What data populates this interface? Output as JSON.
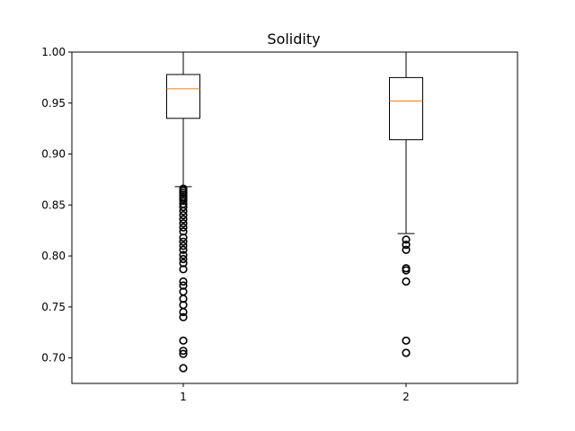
{
  "chart_data": {
    "type": "box",
    "title": "Solidity",
    "xlabel": "",
    "ylabel": "",
    "categories": [
      "1",
      "2"
    ],
    "ylim": [
      0.675,
      1.0
    ],
    "yticks": [
      0.7,
      0.75,
      0.8,
      0.85,
      0.9,
      0.95,
      1.0
    ],
    "ytick_labels": [
      "0.70",
      "0.75",
      "0.80",
      "0.85",
      "0.90",
      "0.95",
      "1.00"
    ],
    "grid": false,
    "colors": {
      "box": "#000000",
      "median": "#ff7f0e",
      "outlier": "#000000"
    },
    "boxes": [
      {
        "category": "1",
        "whisker_low": 0.868,
        "q1": 0.935,
        "median": 0.964,
        "q3": 0.978,
        "whisker_high": 1.0,
        "outliers": [
          0.866,
          0.864,
          0.862,
          0.86,
          0.858,
          0.856,
          0.854,
          0.851,
          0.848,
          0.844,
          0.84,
          0.836,
          0.832,
          0.828,
          0.824,
          0.818,
          0.814,
          0.81,
          0.806,
          0.801,
          0.797,
          0.793,
          0.787,
          0.775,
          0.771,
          0.765,
          0.758,
          0.752,
          0.745,
          0.74,
          0.717,
          0.707,
          0.704,
          0.69
        ]
      },
      {
        "category": "2",
        "whisker_low": 0.822,
        "q1": 0.914,
        "median": 0.952,
        "q3": 0.975,
        "whisker_high": 1.0,
        "outliers": [
          0.816,
          0.811,
          0.806,
          0.788,
          0.786,
          0.775,
          0.717,
          0.705
        ]
      }
    ]
  }
}
